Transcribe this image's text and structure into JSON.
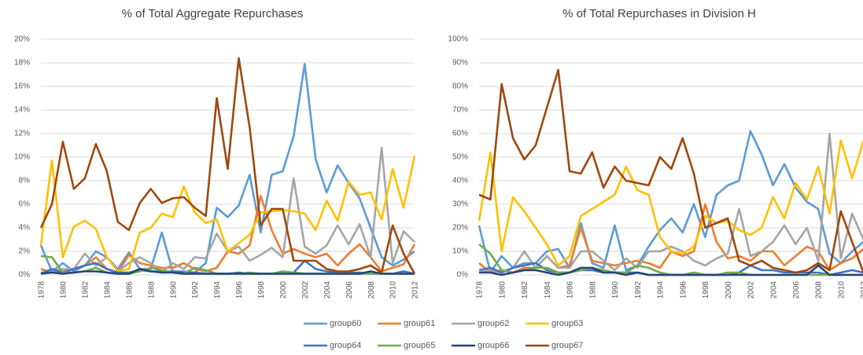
{
  "chart_data": [
    {
      "type": "line",
      "title": "% of Total Aggregate Repurchases",
      "categories": [
        "1978",
        null,
        "1980",
        null,
        "1982",
        null,
        "1984",
        null,
        "1986",
        null,
        "1988",
        null,
        "1990",
        null,
        "1992",
        null,
        "1994",
        null,
        "1996",
        null,
        "1998",
        null,
        "2000",
        null,
        "2002",
        null,
        "2004",
        null,
        "2006",
        null,
        "2008",
        null,
        "2010",
        null,
        "2012"
      ],
      "ylim": [
        0,
        20
      ],
      "yticks": [
        {
          "value": 0,
          "label": "0%"
        },
        {
          "value": 2,
          "label": "2%"
        },
        {
          "value": 4,
          "label": "4%"
        },
        {
          "value": 6,
          "label": "6%"
        },
        {
          "value": 8,
          "label": "8%"
        },
        {
          "value": 10,
          "label": "10%"
        },
        {
          "value": 12,
          "label": "12%"
        },
        {
          "value": 14,
          "label": "14%"
        },
        {
          "value": 16,
          "label": "16%"
        },
        {
          "value": 18,
          "label": "18%"
        },
        {
          "value": 20,
          "label": "20%"
        }
      ],
      "grid": true,
      "series": [
        {
          "name": "group60",
          "color": "#5b9bd5",
          "values": [
            2.5,
            0.3,
            1.0,
            0.3,
            0.8,
            2.0,
            1.5,
            0.5,
            1.9,
            0.5,
            0.5,
            3.6,
            0.3,
            0.3,
            0.2,
            1.0,
            5.7,
            4.9,
            5.9,
            8.5,
            3.6,
            8.5,
            8.8,
            11.8,
            17.9,
            9.8,
            7.0,
            9.3,
            7.8,
            6.5,
            4.0,
            1.5,
            0.8,
            1.3,
            2.0
          ]
        },
        {
          "name": "group61",
          "color": "#ed7d31",
          "values": [
            0.5,
            0.2,
            0.3,
            0.5,
            0.8,
            1.5,
            0.5,
            0.2,
            1.7,
            1.0,
            0.8,
            0.6,
            0.6,
            1.0,
            0.5,
            0.3,
            0.6,
            2.0,
            1.8,
            2.5,
            6.7,
            3.8,
            1.8,
            2.2,
            1.8,
            1.5,
            1.8,
            0.8,
            1.8,
            2.6,
            1.5,
            0.3,
            0.6,
            0.9,
            2.6
          ]
        },
        {
          "name": "group62",
          "color": "#a5a5a5",
          "values": [
            0.2,
            0.3,
            0.5,
            0.5,
            1.8,
            0.8,
            1.5,
            0.3,
            1.0,
            1.5,
            1.0,
            0.2,
            1.0,
            0.5,
            1.5,
            1.4,
            3.5,
            2.0,
            2.4,
            1.2,
            1.7,
            2.3,
            1.5,
            8.2,
            2.4,
            1.8,
            2.5,
            4.2,
            2.6,
            4.3,
            1.5,
            10.8,
            1.0,
            3.7,
            2.8
          ]
        },
        {
          "name": "group63",
          "color": "#ffc000",
          "values": [
            2.5,
            9.7,
            1.5,
            4.1,
            4.6,
            3.9,
            1.5,
            0.3,
            0.5,
            3.6,
            4.0,
            5.2,
            4.9,
            7.5,
            5.3,
            4.4,
            4.7,
            2.0,
            2.7,
            3.4,
            5.3,
            5.4,
            5.5,
            5.4,
            5.2,
            3.8,
            6.3,
            4.6,
            7.9,
            6.8,
            7.0,
            4.7,
            9.0,
            5.7,
            10.1
          ]
        },
        {
          "name": "group64",
          "color": "#4472c4",
          "values": [
            0.1,
            0.5,
            0.2,
            0.5,
            0.8,
            1.0,
            0.5,
            0.2,
            0.2,
            0.4,
            0.3,
            0.3,
            0.3,
            0.2,
            0.2,
            0.1,
            0.1,
            0.1,
            0.2,
            0.1,
            0.1,
            0.1,
            0.1,
            0.2,
            1.2,
            0.5,
            0.3,
            0.2,
            0.2,
            0.2,
            0.1,
            0.1,
            0.1,
            0.3,
            0.1
          ]
        },
        {
          "name": "group65",
          "color": "#70ad47",
          "values": [
            1.6,
            1.5,
            0.2,
            0.2,
            0.3,
            0.6,
            0.2,
            0.1,
            0.1,
            0.3,
            0.6,
            0.4,
            0.2,
            0.1,
            0.6,
            0.4,
            0.1,
            0.1,
            0.1,
            0.2,
            0.1,
            0.1,
            0.3,
            0.2,
            0.1,
            0.1,
            0.1,
            0.1,
            0.1,
            0.1,
            0.1,
            0.1,
            0.1,
            0.1,
            0.1
          ]
        },
        {
          "name": "group66",
          "color": "#264478",
          "values": [
            0.1,
            0.2,
            0.1,
            0.2,
            0.3,
            0.3,
            0.2,
            0.1,
            0.1,
            0.5,
            0.3,
            0.2,
            0.2,
            0.1,
            0.1,
            0.1,
            0.1,
            0.1,
            0.1,
            0.1,
            0.1,
            0.1,
            0.1,
            0.1,
            0.1,
            0.1,
            0.1,
            0.1,
            0.1,
            0.1,
            0.3,
            0.1,
            0.1,
            0.1,
            0.1
          ]
        },
        {
          "name": "group67",
          "color": "#9e480e",
          "values": [
            4.0,
            6.0,
            11.3,
            7.3,
            8.2,
            11.1,
            8.8,
            4.5,
            3.8,
            6.1,
            7.3,
            6.1,
            6.5,
            6.6,
            5.7,
            5.0,
            15.0,
            9.0,
            18.4,
            12.5,
            4.2,
            5.6,
            5.6,
            1.2,
            1.2,
            1.2,
            0.5,
            0.3,
            0.3,
            0.5,
            0.8,
            0.2,
            4.2,
            1.8,
            0.1
          ]
        }
      ]
    },
    {
      "type": "line",
      "title": "%  of Total Repurchases in Division H",
      "categories": [
        "1978",
        null,
        "1980",
        null,
        "1982",
        null,
        "1984",
        null,
        "1986",
        null,
        "1988",
        null,
        "1990",
        null,
        "1992",
        null,
        "1994",
        null,
        "1996",
        null,
        "1998",
        null,
        "2000",
        null,
        "2002",
        null,
        "2004",
        null,
        "2006",
        null,
        "2008",
        null,
        "2010",
        null,
        "2012"
      ],
      "ylim": [
        0,
        100
      ],
      "yticks": [
        {
          "value": 0,
          "label": "0%"
        },
        {
          "value": 10,
          "label": "10%"
        },
        {
          "value": 20,
          "label": "20%"
        },
        {
          "value": 30,
          "label": "30%"
        },
        {
          "value": 40,
          "label": "40%"
        },
        {
          "value": 50,
          "label": "50%"
        },
        {
          "value": 60,
          "label": "60%"
        },
        {
          "value": 70,
          "label": "70%"
        },
        {
          "value": 80,
          "label": "80%"
        },
        {
          "value": 90,
          "label": "90%"
        },
        {
          "value": 100,
          "label": "100%"
        }
      ],
      "grid": true,
      "series": [
        {
          "name": "group60",
          "color": "#5b9bd5",
          "values": [
            21,
            1,
            8,
            3,
            5,
            5,
            10,
            11,
            3,
            22,
            5,
            3,
            21,
            2,
            4,
            12,
            19,
            24,
            18,
            30,
            16,
            34,
            38,
            40,
            61,
            51,
            38,
            47,
            37,
            31,
            28,
            9,
            5,
            10,
            14
          ]
        },
        {
          "name": "group61",
          "color": "#ed7d31",
          "values": [
            5,
            1,
            2,
            1,
            3,
            3,
            8,
            3,
            4,
            20,
            6,
            5,
            4,
            5,
            6,
            5,
            3,
            10,
            8,
            10,
            30,
            14,
            7,
            8,
            6,
            10,
            10,
            4,
            8,
            12,
            10,
            2,
            5,
            7,
            11
          ]
        },
        {
          "name": "group62",
          "color": "#a5a5a5",
          "values": [
            1,
            2,
            1,
            3,
            10,
            3,
            8,
            3,
            3,
            10,
            10,
            6,
            2,
            7,
            3,
            10,
            10,
            12,
            10,
            6,
            4,
            7,
            9,
            28,
            8,
            10,
            14,
            21,
            13,
            20,
            6,
            60,
            7,
            26,
            15
          ]
        },
        {
          "name": "group63",
          "color": "#ffc000",
          "values": [
            23,
            52,
            10,
            33,
            27,
            20,
            13,
            4,
            8,
            25,
            28,
            31,
            34,
            46,
            36,
            34,
            16,
            10,
            9,
            12,
            25,
            22,
            23,
            19,
            17,
            20,
            33,
            24,
            39,
            32,
            46,
            26,
            57,
            41,
            57
          ]
        },
        {
          "name": "group64",
          "color": "#4472c4",
          "values": [
            2,
            3,
            1,
            3,
            4,
            5,
            2,
            1,
            1,
            2,
            2,
            1,
            1,
            1,
            1,
            0,
            0,
            0,
            0,
            0,
            0,
            0,
            0,
            1,
            4,
            2,
            2,
            1,
            1,
            1,
            1,
            0,
            1,
            2,
            1
          ]
        },
        {
          "name": "group65",
          "color": "#70ad47",
          "values": [
            13,
            9,
            2,
            1,
            2,
            3,
            3,
            1,
            1,
            2,
            3,
            2,
            1,
            1,
            4,
            3,
            1,
            0,
            0,
            1,
            0,
            0,
            1,
            1,
            0,
            0,
            0,
            0,
            0,
            0,
            0,
            0,
            0,
            0,
            0
          ]
        },
        {
          "name": "group66",
          "color": "#264478",
          "values": [
            1,
            1,
            0,
            1,
            2,
            2,
            1,
            0,
            1,
            3,
            3,
            1,
            1,
            0,
            1,
            0,
            0,
            0,
            0,
            0,
            0,
            0,
            0,
            0,
            0,
            0,
            0,
            0,
            0,
            0,
            4,
            0,
            0,
            0,
            0
          ]
        },
        {
          "name": "group67",
          "color": "#9e480e",
          "values": [
            34,
            32,
            81,
            58,
            49,
            55,
            71,
            87,
            44,
            43,
            52,
            37,
            46,
            40,
            39,
            38,
            50,
            45,
            58,
            43,
            20,
            22,
            24,
            6,
            4,
            6,
            3,
            2,
            1,
            2,
            5,
            2,
            27,
            14,
            1
          ]
        }
      ]
    }
  ]
}
